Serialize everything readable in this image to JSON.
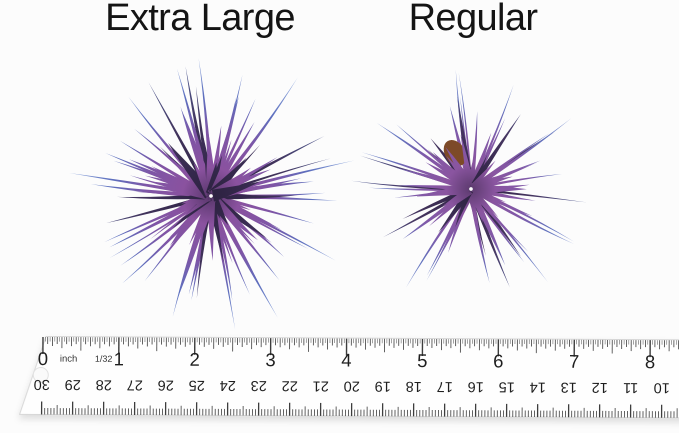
{
  "photo": {
    "background_color": "#fcfcfc",
    "subject": "Two purple tillandsia air plants shown above a ruler for size comparison"
  },
  "plants": [
    {
      "label": "Extra Large",
      "kind": "tillandsia-air-plant",
      "colors": {
        "center": "#57366a",
        "body": "#8a529f",
        "mid": "#7e55a6",
        "tip_blue": "#5d6fbe",
        "tip_light": "#8fa9de",
        "dark_leaf": "#41335c"
      }
    },
    {
      "label": "Regular",
      "kind": "tillandsia-air-plant",
      "base_color": "#7d4a28",
      "colors": {
        "center": "#5c3a6e",
        "body": "#8a55a0",
        "mid": "#8059a8",
        "tip_blue": "#6171bd",
        "tip_light": "#93a6da",
        "dark_leaf": "#463560"
      }
    }
  ],
  "ruler": {
    "unit_label": "inch",
    "fraction_label": "1/32",
    "inch_numbers": [
      "0",
      "1",
      "2",
      "3",
      "4",
      "5",
      "6",
      "7",
      "8"
    ],
    "cm_numbers": [
      "30",
      "29",
      "28",
      "27",
      "26",
      "25",
      "24",
      "23",
      "22",
      "21",
      "20",
      "19",
      "18",
      "17",
      "16",
      "15",
      "14",
      "13",
      "12",
      "11",
      "10"
    ],
    "tick_color": "#3d3d3d",
    "number_color": "#1e1e1e",
    "small_label_color": "#333333",
    "body_color": "#ffffff",
    "edge_color": "#d6d6d6"
  }
}
